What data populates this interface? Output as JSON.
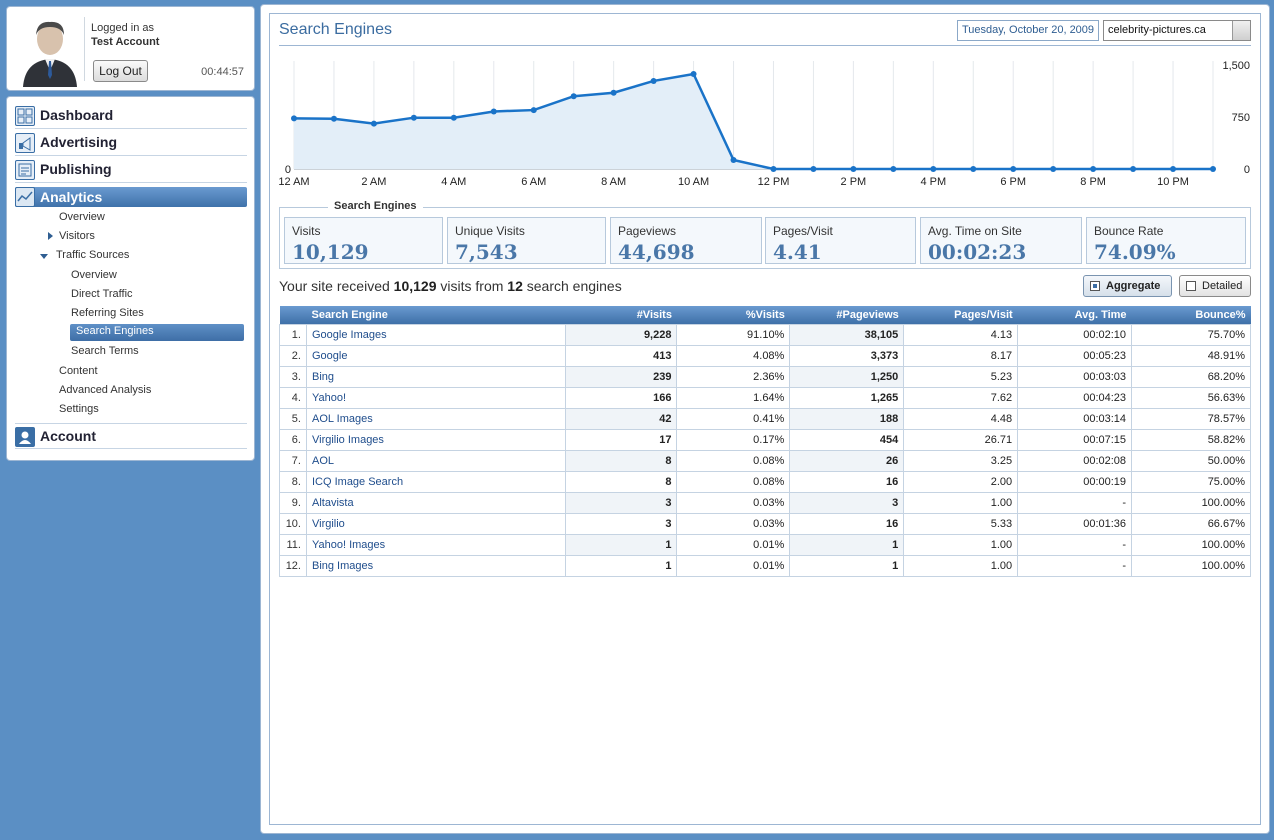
{
  "user": {
    "logged_in_as": "Logged in as",
    "account": "Test Account",
    "logout": "Log Out",
    "timer": "00:44:57"
  },
  "nav": {
    "dashboard": "Dashboard",
    "advertising": "Advertising",
    "publishing": "Publishing",
    "analytics": "Analytics",
    "account": "Account",
    "sub": {
      "overview": "Overview",
      "visitors": "Visitors",
      "traffic_sources": "Traffic Sources",
      "ts_overview": "Overview",
      "direct_traffic": "Direct Traffic",
      "referring_sites": "Referring Sites",
      "search_engines": "Search Engines",
      "search_terms": "Search Terms",
      "content": "Content",
      "advanced_analysis": "Advanced Analysis",
      "settings": "Settings"
    }
  },
  "header": {
    "title": "Search Engines",
    "date": "Tuesday, October 20, 2009",
    "site": "celebrity-pictures.ca"
  },
  "chart_data": {
    "type": "area",
    "x": [
      "12 AM",
      "1 AM",
      "2 AM",
      "3 AM",
      "4 AM",
      "5 AM",
      "6 AM",
      "7 AM",
      "8 AM",
      "9 AM",
      "10 AM",
      "11 AM",
      "12 PM",
      "1 PM",
      "2 PM",
      "3 PM",
      "4 PM",
      "5 PM",
      "6 PM",
      "7 PM",
      "8 PM",
      "9 PM",
      "10 PM",
      "11 PM"
    ],
    "xticks": [
      "12 AM",
      "2 AM",
      "4 AM",
      "6 AM",
      "8 AM",
      "10 AM",
      "12 PM",
      "2 PM",
      "4 PM",
      "6 PM",
      "8 PM",
      "10 PM"
    ],
    "values": [
      730,
      725,
      655,
      740,
      740,
      830,
      850,
      1050,
      1100,
      1270,
      1370,
      130,
      0,
      0,
      0,
      0,
      0,
      0,
      0,
      0,
      0,
      0,
      0,
      0
    ],
    "ylim": [
      0,
      1500
    ],
    "yticks": [
      "1,500",
      "750",
      "0"
    ],
    "y_left_zero": "0",
    "color": "#1a73c8"
  },
  "stats": {
    "legend": "Search Engines",
    "items": [
      {
        "label": "Visits",
        "value": "10,129"
      },
      {
        "label": "Unique Visits",
        "value": "7,543"
      },
      {
        "label": "Pageviews",
        "value": "44,698"
      },
      {
        "label": "Pages/Visit",
        "value": "4.41"
      },
      {
        "label": "Avg. Time on Site",
        "value": "00:02:23"
      },
      {
        "label": "Bounce Rate",
        "value": "74.09%"
      }
    ]
  },
  "summary": {
    "prefix": "Your site received",
    "visits": "10,129",
    "middle": "visits from",
    "count": "12",
    "suffix": "search engines"
  },
  "buttons": {
    "aggregate": "Aggregate",
    "detailed": "Detailed"
  },
  "table": {
    "headers": [
      "Search Engine",
      "#Visits",
      "%Visits",
      "#Pageviews",
      "Pages/Visit",
      "Avg. Time",
      "Bounce%"
    ],
    "rows": [
      [
        "1.",
        "Google Images",
        "9,228",
        "91.10%",
        "38,105",
        "4.13",
        "00:02:10",
        "75.70%"
      ],
      [
        "2.",
        "Google",
        "413",
        "4.08%",
        "3,373",
        "8.17",
        "00:05:23",
        "48.91%"
      ],
      [
        "3.",
        "Bing",
        "239",
        "2.36%",
        "1,250",
        "5.23",
        "00:03:03",
        "68.20%"
      ],
      [
        "4.",
        "Yahoo!",
        "166",
        "1.64%",
        "1,265",
        "7.62",
        "00:04:23",
        "56.63%"
      ],
      [
        "5.",
        "AOL Images",
        "42",
        "0.41%",
        "188",
        "4.48",
        "00:03:14",
        "78.57%"
      ],
      [
        "6.",
        "Virgilio Images",
        "17",
        "0.17%",
        "454",
        "26.71",
        "00:07:15",
        "58.82%"
      ],
      [
        "7.",
        "AOL",
        "8",
        "0.08%",
        "26",
        "3.25",
        "00:02:08",
        "50.00%"
      ],
      [
        "8.",
        "ICQ Image Search",
        "8",
        "0.08%",
        "16",
        "2.00",
        "00:00:19",
        "75.00%"
      ],
      [
        "9.",
        "Altavista",
        "3",
        "0.03%",
        "3",
        "1.00",
        "-",
        "100.00%"
      ],
      [
        "10.",
        "Virgilio",
        "3",
        "0.03%",
        "16",
        "5.33",
        "00:01:36",
        "66.67%"
      ],
      [
        "11.",
        "Yahoo! Images",
        "1",
        "0.01%",
        "1",
        "1.00",
        "-",
        "100.00%"
      ],
      [
        "12.",
        "Bing Images",
        "1",
        "0.01%",
        "1",
        "1.00",
        "-",
        "100.00%"
      ]
    ]
  }
}
